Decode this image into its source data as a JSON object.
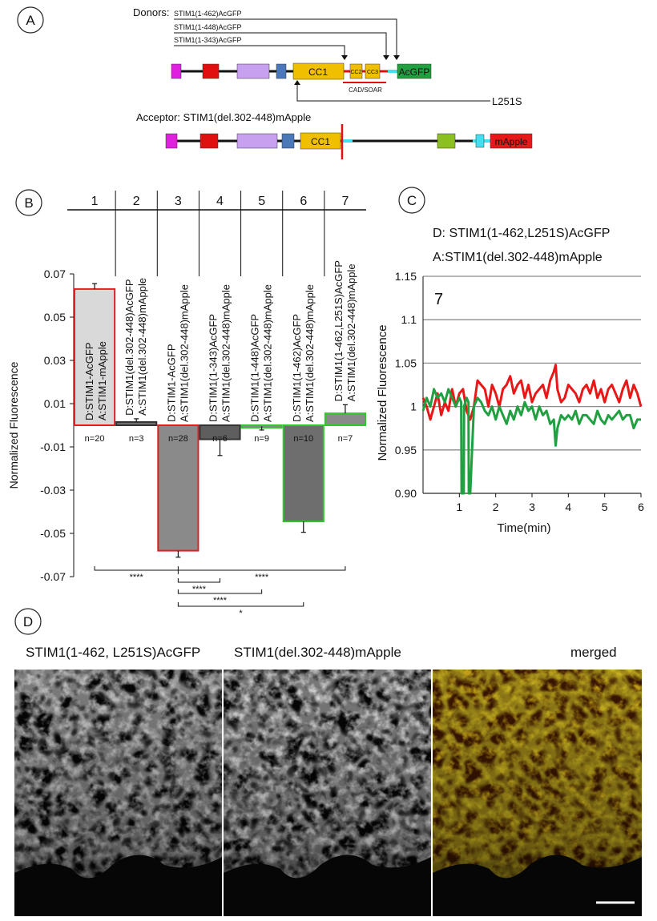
{
  "panels": {
    "a": "A",
    "b": "B",
    "c": "C",
    "d": "D"
  },
  "panel_a": {
    "donors_label": "Donors:",
    "donors": [
      "STIM1(1-462)AcGFP",
      "STIM1(1-448)AcGFP",
      "STIM1(1-343)AcGFP"
    ],
    "donor_domains": {
      "cc1": "CC1",
      "cc2": "CC2",
      "cc3": "CC3",
      "tag": "AcGFP"
    },
    "cad_soar": "CAD/SOAR",
    "mutation": "L251S",
    "acceptor_label": "Acceptor: STIM1(del.302-448)mApple",
    "acceptor_domains": {
      "cc1": "CC1",
      "tag": "mApple"
    },
    "colors": {
      "magenta": "#e020e0",
      "red": "#e01010",
      "lavender": "#c8a0f0",
      "blue": "#4a78b8",
      "yellow": "#f0c000",
      "green": "#20a040",
      "lime": "#8cc020",
      "cyan": "#40e0f0",
      "mapple": "#e81818"
    }
  },
  "chart_data": [
    {
      "id": "B",
      "type": "bar",
      "title": "",
      "xlabel": "",
      "ylabel": "Normalized Fluorescence",
      "ylim": [
        -0.07,
        0.07
      ],
      "yticks": [
        "0.07",
        "0.05",
        "0.03",
        "0.01",
        "-0.01",
        "-0.03",
        "-0.05",
        "-0.07"
      ],
      "yticks_values": [
        0.07,
        0.05,
        0.03,
        0.01,
        -0.01,
        -0.03,
        -0.05,
        -0.07
      ],
      "categories": [
        "1",
        "2",
        "3",
        "4",
        "5",
        "6",
        "7"
      ],
      "values": [
        0.063,
        0.0015,
        -0.058,
        -0.0065,
        -0.0005,
        -0.0445,
        0.0055
      ],
      "errors": [
        0.0025,
        0.0015,
        0.003,
        0.0075,
        0.0017,
        0.005,
        0.004
      ],
      "bar_fill": [
        "#d9d9d9",
        "#6e6e6e",
        "#8a8a8a",
        "#5e5e5e",
        "#8a8a8a",
        "#6e6e6e",
        "#8a8a8a"
      ],
      "bar_outline": [
        "#e02020",
        "#333333",
        "#e02020",
        "#333333",
        "#2ec82e",
        "#2ec82e",
        "#2ec82e"
      ],
      "n_labels": [
        "n=20",
        "n=3",
        "n=28",
        "n=6",
        "n=9",
        "n=10",
        "n=7"
      ],
      "conditions": [
        {
          "d": "D:STIM1-AcGFP",
          "a": "A:STIM1-mApple"
        },
        {
          "d": "D:STIM1(del.302-448)AcGFP",
          "a": "A:STIM1(del.302-448)mApple"
        },
        {
          "d": "D:STIM1-AcGFP",
          "a": "A:STIM1(del.302-448)mApple"
        },
        {
          "d": "D:STIM1(1-343)AcGFP",
          "a": "A:STIM1(del.302-448)mApple"
        },
        {
          "d": "D:STIM1(1-448)AcGFP",
          "a": "A:STIM1(del.302-448)mApple"
        },
        {
          "d": "D:STIM1(1-462)AcGFP",
          "a": "A:STIM1(del.302-448)mApple"
        },
        {
          "d": "D:STIM1(1-462,L251S)AcGFP",
          "a": "A:STIM1(del.302-448)mApple"
        }
      ],
      "significance": [
        {
          "from": 1,
          "to": 7,
          "text": "****",
          "pivot": 3
        },
        {
          "from": 3,
          "to": 4,
          "text": "****"
        },
        {
          "from": 3,
          "to": 5,
          "text": "****"
        },
        {
          "from": 3,
          "to": 6,
          "text": "*"
        }
      ]
    },
    {
      "id": "C",
      "type": "line",
      "title": "D: STIM1(1-462,L251S)AcGFP",
      "subtitle": "A:STIM1(del.302-448)mApple",
      "annotation": "7",
      "xlabel": "Time(min)",
      "ylabel": "Normalized Fluorescence",
      "xlim": [
        0,
        6
      ],
      "ylim": [
        0.9,
        1.15
      ],
      "xticks": [
        "1",
        "2",
        "3",
        "4",
        "5",
        "6"
      ],
      "yticks": [
        "1.15",
        "1.1",
        "1.05",
        "1",
        "0.95",
        "0.90"
      ],
      "yticks_values": [
        1.15,
        1.1,
        1.05,
        1.0,
        0.95,
        0.9
      ],
      "series": [
        {
          "name": "acceptor",
          "color": "#e81818",
          "x": [
            0,
            0.1,
            0.2,
            0.3,
            0.4,
            0.5,
            0.6,
            0.7,
            0.8,
            0.9,
            1.0,
            1.1,
            1.2,
            1.3,
            1.4,
            1.5,
            1.6,
            1.7,
            1.8,
            1.9,
            2.0,
            2.1,
            2.2,
            2.3,
            2.4,
            2.5,
            2.6,
            2.7,
            2.8,
            2.9,
            3.0,
            3.1,
            3.2,
            3.3,
            3.4,
            3.5,
            3.6,
            3.65,
            3.7,
            3.8,
            3.9,
            4.0,
            4.1,
            4.2,
            4.3,
            4.4,
            4.5,
            4.6,
            4.7,
            4.8,
            4.9,
            5.0,
            5.1,
            5.2,
            5.3,
            5.4,
            5.5,
            5.6,
            5.7,
            5.8,
            5.9,
            6.0
          ],
          "y": [
            1.01,
            1.0,
            0.985,
            1.0,
            1.015,
            0.99,
            1.005,
            0.995,
            1.02,
            1.0,
            1.015,
            1.02,
            0.995,
            0.985,
            1.0,
            1.03,
            1.025,
            1.02,
            1.0,
            1.025,
            1.015,
            1.0,
            1.02,
            1.025,
            1.035,
            1.015,
            1.025,
            1.03,
            1.01,
            1.025,
            1.005,
            1.015,
            1.02,
            1.025,
            1.01,
            1.03,
            1.04,
            1.048,
            1.02,
            1.005,
            1.01,
            1.025,
            1.02,
            1.015,
            1.005,
            1.02,
            1.025,
            1.015,
            1.03,
            1.01,
            1.02,
            1.005,
            1.02,
            1.025,
            1.015,
            1.005,
            1.02,
            1.03,
            1.01,
            1.025,
            1.015,
            1.0
          ]
        },
        {
          "name": "donor",
          "color": "#20a040",
          "x": [
            0,
            0.1,
            0.2,
            0.3,
            0.4,
            0.5,
            0.6,
            0.7,
            0.8,
            0.9,
            1.0,
            1.05,
            1.06,
            1.12,
            1.13,
            1.2,
            1.25,
            1.26,
            1.3,
            1.4,
            1.5,
            1.6,
            1.7,
            1.8,
            1.9,
            2.0,
            2.1,
            2.2,
            2.3,
            2.4,
            2.5,
            2.6,
            2.7,
            2.8,
            2.9,
            3.0,
            3.1,
            3.2,
            3.3,
            3.4,
            3.5,
            3.6,
            3.65,
            3.7,
            3.8,
            3.9,
            4.0,
            4.1,
            4.2,
            4.3,
            4.4,
            4.5,
            4.6,
            4.7,
            4.8,
            4.9,
            5.0,
            5.1,
            5.2,
            5.3,
            5.4,
            5.5,
            5.6,
            5.7,
            5.8,
            5.9,
            6.0
          ],
          "y": [
            0.995,
            1.01,
            1.0,
            1.02,
            1.01,
            1.015,
            1.005,
            1.02,
            1.01,
            1.0,
            1.01,
            1.005,
            0.9,
            0.9,
            1.0,
            1.01,
            1.005,
            0.9,
            0.9,
            1.0,
            1.01,
            1.005,
            0.995,
            0.99,
            1.0,
            0.985,
            1.0,
            0.99,
            0.98,
            0.995,
            0.985,
            1.0,
            0.99,
            1.005,
            0.995,
            1.0,
            0.985,
            1.0,
            0.99,
            0.995,
            0.98,
            0.985,
            0.955,
            0.975,
            0.99,
            0.985,
            0.99,
            0.985,
            0.995,
            0.98,
            0.99,
            0.99,
            0.985,
            0.98,
            0.995,
            0.985,
            0.98,
            0.99,
            0.985,
            0.99,
            0.995,
            0.985,
            0.99,
            0.99,
            0.975,
            0.985,
            0.985
          ]
        }
      ]
    }
  ],
  "panel_d": {
    "titles": [
      "STIM1(1-462, L251S)AcGFP",
      "STIM1(del.302-448)mApple",
      "merged"
    ],
    "scale_bar_color": "#ffffff"
  }
}
